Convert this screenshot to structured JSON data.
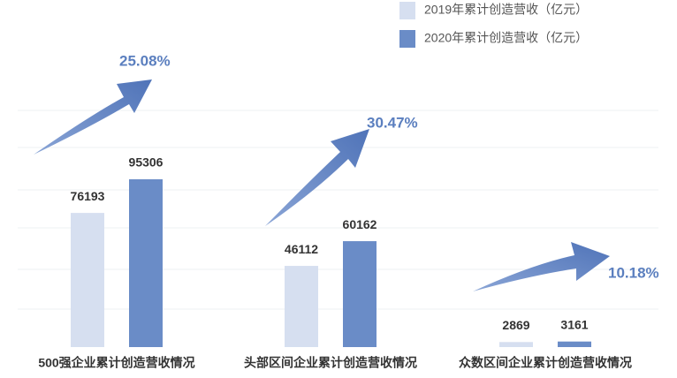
{
  "chart_data": {
    "type": "bar",
    "categories": [
      "500强企业累计创造营收情况",
      "头部区间企业累计创造营收情况",
      "众数区间企业累计创造营收情况"
    ],
    "series": [
      {
        "name": "2019年累计创造营收（亿元）",
        "color": "#d6dff0",
        "values": [
          76193,
          46112,
          2869
        ]
      },
      {
        "name": "2020年累计创造营收（亿元）",
        "color": "#6a8cc7",
        "values": [
          95306,
          60162,
          3161
        ]
      }
    ],
    "annotations": [
      "25.08%",
      "30.47%",
      "10.18%"
    ],
    "legend": "top-right"
  }
}
